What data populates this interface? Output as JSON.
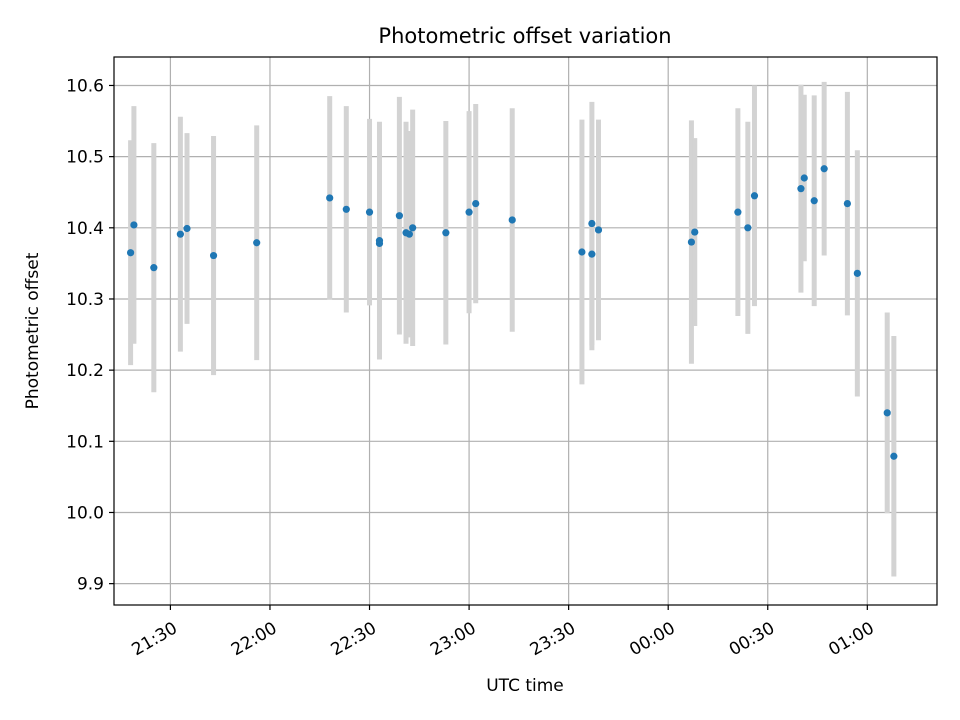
{
  "chart_data": {
    "type": "scatter",
    "title": "Photometric offset variation",
    "xlabel": "UTC time",
    "ylabel": "Photometric offset",
    "x_axis_kind": "time",
    "xlim": [
      "21:13",
      "01:21"
    ],
    "ylim": [
      9.87,
      10.64
    ],
    "x_ticks": [
      "21:30",
      "22:00",
      "22:30",
      "23:00",
      "23:30",
      "00:00",
      "00:30",
      "01:00"
    ],
    "y_ticks": [
      "9.9",
      "10.0",
      "10.1",
      "10.2",
      "10.3",
      "10.4",
      "10.5",
      "10.6"
    ],
    "grid": true,
    "point_color": "#1f77b4",
    "errorbar_color": "#d3d3d3",
    "points": [
      {
        "t": "21:18",
        "y": 10.365,
        "err": 0.158
      },
      {
        "t": "21:19",
        "y": 10.404,
        "err": 0.167
      },
      {
        "t": "21:25",
        "y": 10.344,
        "err": 0.175
      },
      {
        "t": "21:33",
        "y": 10.391,
        "err": 0.165
      },
      {
        "t": "21:35",
        "y": 10.399,
        "err": 0.134
      },
      {
        "t": "21:43",
        "y": 10.361,
        "err": 0.168
      },
      {
        "t": "21:56",
        "y": 10.379,
        "err": 0.165
      },
      {
        "t": "22:18",
        "y": 10.442,
        "err": 0.143
      },
      {
        "t": "22:23",
        "y": 10.426,
        "err": 0.145
      },
      {
        "t": "22:30",
        "y": 10.422,
        "err": 0.131
      },
      {
        "t": "22:33",
        "y": 10.378,
        "err": 0.162
      },
      {
        "t": "22:33",
        "y": 10.382,
        "err": 0.167
      },
      {
        "t": "22:39",
        "y": 10.417,
        "err": 0.167
      },
      {
        "t": "22:41",
        "y": 10.393,
        "err": 0.156
      },
      {
        "t": "22:42",
        "y": 10.391,
        "err": 0.145
      },
      {
        "t": "22:43",
        "y": 10.4,
        "err": 0.166
      },
      {
        "t": "22:53",
        "y": 10.393,
        "err": 0.157
      },
      {
        "t": "23:00",
        "y": 10.422,
        "err": 0.142
      },
      {
        "t": "23:02",
        "y": 10.434,
        "err": 0.14
      },
      {
        "t": "23:13",
        "y": 10.411,
        "err": 0.157
      },
      {
        "t": "23:34",
        "y": 10.366,
        "err": 0.186
      },
      {
        "t": "23:37",
        "y": 10.406,
        "err": 0.171
      },
      {
        "t": "23:37",
        "y": 10.363,
        "err": 0.135
      },
      {
        "t": "23:39",
        "y": 10.397,
        "err": 0.155
      },
      {
        "t": "00:07",
        "y": 10.38,
        "err": 0.171
      },
      {
        "t": "00:08",
        "y": 10.394,
        "err": 0.132
      },
      {
        "t": "00:21",
        "y": 10.422,
        "err": 0.146
      },
      {
        "t": "00:24",
        "y": 10.4,
        "err": 0.149
      },
      {
        "t": "00:26",
        "y": 10.445,
        "err": 0.155
      },
      {
        "t": "00:40",
        "y": 10.455,
        "err": 0.146
      },
      {
        "t": "00:41",
        "y": 10.47,
        "err": 0.117
      },
      {
        "t": "00:44",
        "y": 10.438,
        "err": 0.148
      },
      {
        "t": "00:47",
        "y": 10.483,
        "err": 0.122
      },
      {
        "t": "00:54",
        "y": 10.434,
        "err": 0.157
      },
      {
        "t": "00:57",
        "y": 10.336,
        "err": 0.173
      },
      {
        "t": "01:06",
        "y": 10.14,
        "err": 0.141
      },
      {
        "t": "01:08",
        "y": 10.079,
        "err": 0.169
      }
    ]
  }
}
